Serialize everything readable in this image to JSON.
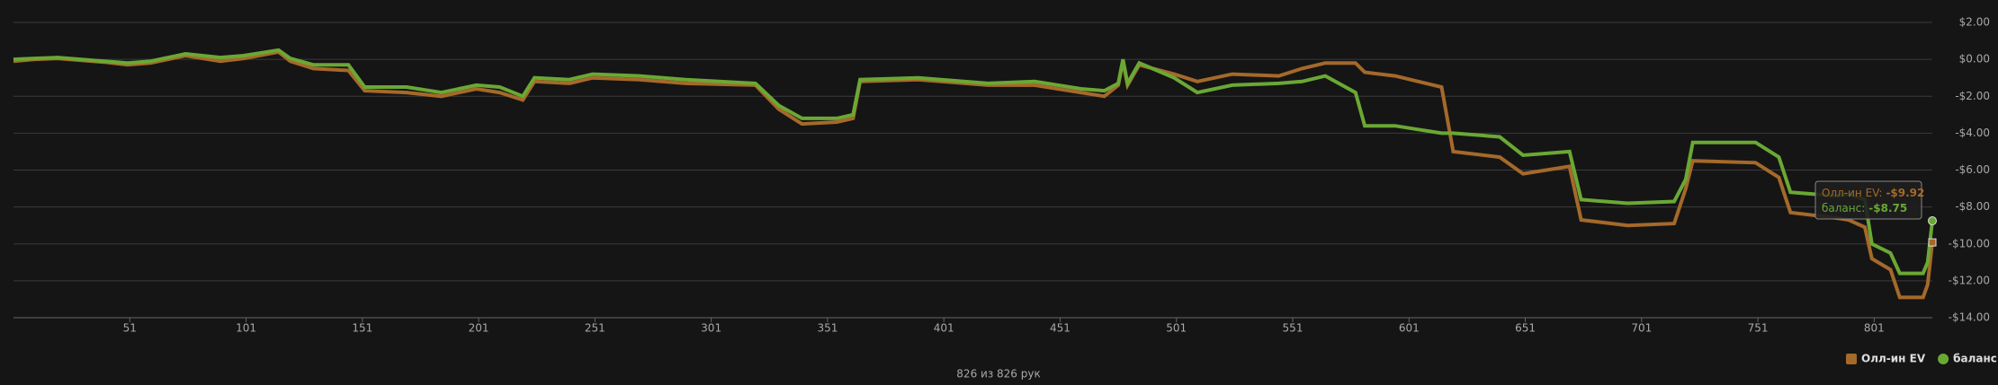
{
  "chart_data": {
    "type": "line",
    "x_label": "826 из 826 рук",
    "x": [
      1,
      10,
      20,
      40,
      50,
      60,
      75,
      90,
      100,
      115,
      120,
      130,
      145,
      152,
      170,
      185,
      200,
      210,
      220,
      225,
      240,
      250,
      270,
      290,
      320,
      330,
      340,
      355,
      362,
      365,
      390,
      420,
      440,
      460,
      470,
      476,
      478,
      480,
      485,
      500,
      510,
      525,
      545,
      555,
      565,
      578,
      582,
      595,
      605,
      615,
      620,
      640,
      650,
      670,
      675,
      695,
      715,
      720,
      723,
      750,
      760,
      765,
      785,
      790,
      797,
      800,
      808,
      812,
      822,
      824,
      826
    ],
    "series": [
      {
        "name": "Олл-ин EV",
        "color": "#a5692a",
        "values": [
          -0.1,
          0,
          0.05,
          -0.15,
          -0.3,
          -0.2,
          0.2,
          -0.1,
          0.05,
          0.4,
          -0.1,
          -0.5,
          -0.6,
          -1.7,
          -1.8,
          -2.0,
          -1.6,
          -1.8,
          -2.2,
          -1.2,
          -1.3,
          -1.0,
          -1.1,
          -1.3,
          -1.4,
          -2.7,
          -3.5,
          -3.4,
          -3.2,
          -1.2,
          -1.1,
          -1.4,
          -1.4,
          -1.8,
          -2.0,
          -1.4,
          -0.1,
          -1.4,
          -0.3,
          -0.8,
          -1.2,
          -0.8,
          -0.9,
          -0.5,
          -0.2,
          -0.2,
          -0.7,
          -0.9,
          -1.2,
          -1.5,
          -5.0,
          -5.3,
          -6.2,
          -5.8,
          -8.7,
          -9.0,
          -8.9,
          -7.0,
          -5.5,
          -5.6,
          -6.4,
          -8.3,
          -8.6,
          -8.7,
          -9.1,
          -10.8,
          -11.4,
          -12.9,
          -12.9,
          -12.2,
          -9.92
        ]
      },
      {
        "name": "баланс",
        "color": "#6aa834",
        "values": [
          0,
          0.05,
          0.1,
          -0.1,
          -0.2,
          -0.1,
          0.3,
          0.1,
          0.2,
          0.5,
          0.05,
          -0.3,
          -0.3,
          -1.5,
          -1.5,
          -1.8,
          -1.4,
          -1.5,
          -2.0,
          -1.0,
          -1.1,
          -0.8,
          -0.9,
          -1.1,
          -1.3,
          -2.5,
          -3.2,
          -3.2,
          -3.0,
          -1.1,
          -1.0,
          -1.3,
          -1.2,
          -1.6,
          -1.7,
          -1.3,
          0,
          -1.3,
          -0.2,
          -1.0,
          -1.8,
          -1.4,
          -1.3,
          -1.2,
          -0.9,
          -1.8,
          -3.6,
          -3.6,
          -3.8,
          -4.0,
          -4.0,
          -4.2,
          -5.2,
          -5.0,
          -7.6,
          -7.8,
          -7.7,
          -6.5,
          -4.5,
          -4.5,
          -5.3,
          -7.2,
          -7.4,
          -7.3,
          -7.6,
          -10.0,
          -10.5,
          -11.6,
          -11.6,
          -11.0,
          -8.75
        ]
      }
    ],
    "xlim": [
      1,
      826
    ],
    "xticks": [
      51,
      101,
      151,
      201,
      251,
      301,
      351,
      401,
      451,
      501,
      551,
      601,
      651,
      701,
      751,
      801
    ],
    "ylim": [
      -14,
      2
    ],
    "yticks": [
      {
        "value": 2,
        "label": "$2.00"
      },
      {
        "value": 0,
        "label": "$0.00"
      },
      {
        "value": -2,
        "label": "-$2.00"
      },
      {
        "value": -4,
        "label": "-$4.00"
      },
      {
        "value": -6,
        "label": "-$6.00"
      },
      {
        "value": -8,
        "label": "-$8.00"
      },
      {
        "value": -10,
        "label": "-$10.00"
      },
      {
        "value": -12,
        "label": "-$12.00"
      },
      {
        "value": -14,
        "label": "-$14.00"
      }
    ],
    "grid": true,
    "legend": "bottom-right",
    "tooltip": [
      {
        "label": "Олл-ин EV:",
        "value": "-$9.92"
      },
      {
        "label": "баланс:",
        "value": "-$8.75"
      }
    ]
  }
}
